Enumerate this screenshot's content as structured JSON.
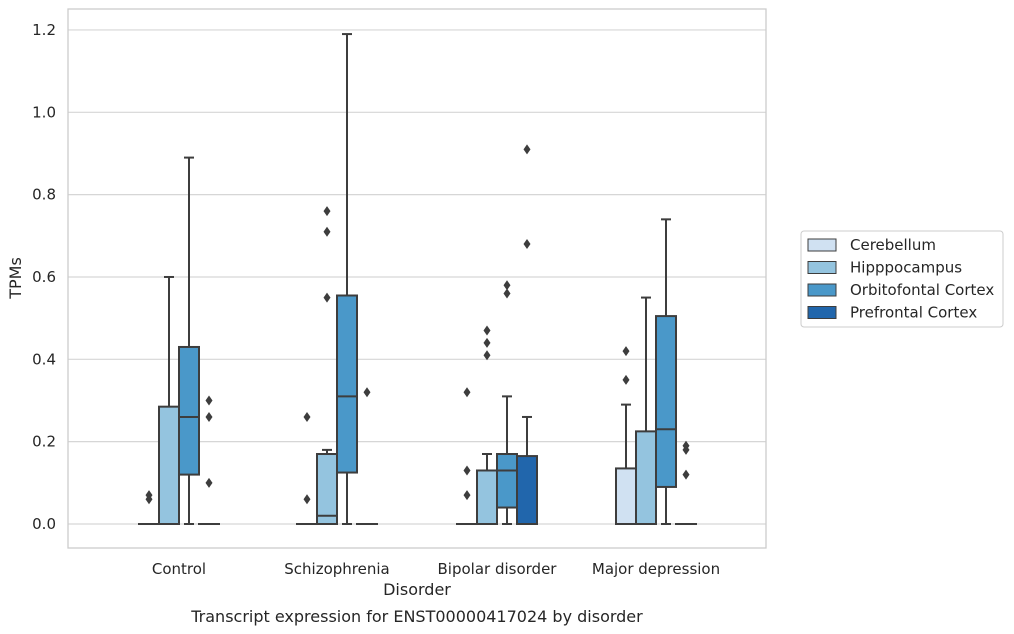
{
  "caption": "Transcript expression for ENST00000417024 by disorder",
  "chart_data": {
    "type": "box",
    "xlabel": "Disorder",
    "ylabel": "TPMs",
    "ylim": [
      -0.06,
      1.25
    ],
    "yticks": [
      "0.0",
      "0.2",
      "0.4",
      "0.6",
      "0.8",
      "1.0",
      "1.2"
    ],
    "grid": "horizontal",
    "legend_position": "right",
    "categories": [
      "Control",
      "Schizophrenia",
      "Bipolar disorder",
      "Major depression"
    ],
    "series": [
      {
        "name": "Cerebellum",
        "color": "#d0e1f2",
        "boxes": [
          {
            "category": "Control",
            "min": 0,
            "q1": 0,
            "median": 0,
            "q3": 0,
            "max": 0,
            "outliers": [
              0.06,
              0.07
            ]
          },
          {
            "category": "Schizophrenia",
            "min": 0,
            "q1": 0,
            "median": 0,
            "q3": 0,
            "max": 0,
            "outliers": [
              0.06,
              0.26
            ]
          },
          {
            "category": "Bipolar disorder",
            "min": 0,
            "q1": 0,
            "median": 0,
            "q3": 0,
            "max": 0,
            "outliers": [
              0.07,
              0.13,
              0.32
            ]
          },
          {
            "category": "Major depression",
            "min": 0,
            "q1": 0,
            "median": 0,
            "q3": 0.135,
            "max": 0.29,
            "outliers": [
              0.35,
              0.42
            ]
          }
        ]
      },
      {
        "name": "Hipppocampus",
        "color": "#94c4df",
        "boxes": [
          {
            "category": "Control",
            "min": 0,
            "q1": 0,
            "median": 0,
            "q3": 0.285,
            "max": 0.6,
            "outliers": []
          },
          {
            "category": "Schizophrenia",
            "min": 0,
            "q1": 0,
            "median": 0.02,
            "q3": 0.17,
            "max": 0.18,
            "outliers": [
              0.55,
              0.71,
              0.76
            ]
          },
          {
            "category": "Bipolar disorder",
            "min": 0,
            "q1": 0,
            "median": 0,
            "q3": 0.13,
            "max": 0.17,
            "outliers": [
              0.41,
              0.44,
              0.47
            ]
          },
          {
            "category": "Major depression",
            "min": 0,
            "q1": 0,
            "median": 0,
            "q3": 0.225,
            "max": 0.55,
            "outliers": []
          }
        ]
      },
      {
        "name": "Orbitofontal Cortex",
        "color": "#4a98c9",
        "boxes": [
          {
            "category": "Control",
            "min": 0,
            "q1": 0.12,
            "median": 0.26,
            "q3": 0.43,
            "max": 0.89,
            "outliers": []
          },
          {
            "category": "Schizophrenia",
            "min": 0,
            "q1": 0.125,
            "median": 0.31,
            "q3": 0.555,
            "max": 1.19,
            "outliers": []
          },
          {
            "category": "Bipolar disorder",
            "min": 0,
            "q1": 0.04,
            "median": 0.13,
            "q3": 0.17,
            "max": 0.31,
            "outliers": [
              0.56,
              0.58
            ]
          },
          {
            "category": "Major depression",
            "min": 0,
            "q1": 0.09,
            "median": 0.23,
            "q3": 0.505,
            "max": 0.74,
            "outliers": []
          }
        ]
      },
      {
        "name": "Prefrontal Cortex",
        "color": "#2166ac",
        "boxes": [
          {
            "category": "Control",
            "min": 0,
            "q1": 0,
            "median": 0,
            "q3": 0,
            "max": 0,
            "outliers": [
              0.1,
              0.26,
              0.3
            ]
          },
          {
            "category": "Schizophrenia",
            "min": 0,
            "q1": 0,
            "median": 0,
            "q3": 0,
            "max": 0,
            "outliers": [
              0.32
            ]
          },
          {
            "category": "Bipolar disorder",
            "min": 0,
            "q1": 0,
            "median": 0,
            "q3": 0.165,
            "max": 0.26,
            "outliers": [
              0.68,
              0.91
            ]
          },
          {
            "category": "Major depression",
            "min": 0,
            "q1": 0,
            "median": 0,
            "q3": 0,
            "max": 0,
            "outliers": [
              0.12,
              0.18,
              0.19
            ]
          }
        ]
      }
    ]
  }
}
